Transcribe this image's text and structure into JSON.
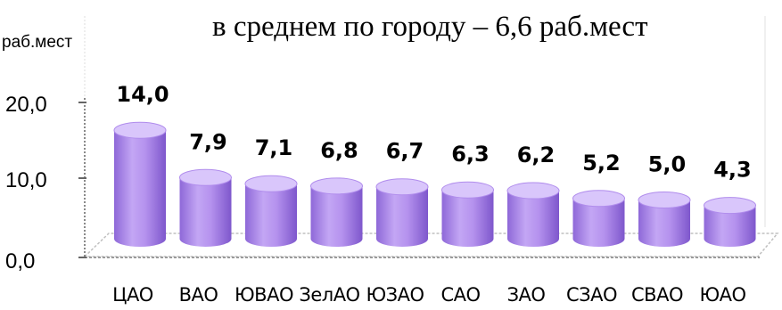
{
  "chart_data": {
    "type": "bar",
    "title": "в среднем по городу – 6,6 раб.мест",
    "ylabel": "раб.мест",
    "xlabel": "",
    "ylim": [
      0,
      25
    ],
    "y_ticks": [
      "0,0",
      "10,0",
      "20,0"
    ],
    "categories": [
      "ЦАО",
      "ВАО",
      "ЮВАО",
      "ЗелАО",
      "ЮЗАО",
      "САО",
      "ЗАО",
      "СЗАО",
      "СВАО",
      "ЮАО"
    ],
    "values": [
      14.0,
      7.9,
      7.1,
      6.8,
      6.7,
      6.3,
      6.2,
      5.2,
      5.0,
      4.3
    ],
    "value_labels": [
      "14,0",
      "7,9",
      "7,1",
      "6,8",
      "6,7",
      "6,3",
      "6,2",
      "5,2",
      "5,0",
      "4,3"
    ],
    "bar_color": "#b08cec",
    "bar_top_color": "#d9c6fb",
    "bar_dark_color": "#8a62d6",
    "grid": false,
    "legend": "none"
  }
}
